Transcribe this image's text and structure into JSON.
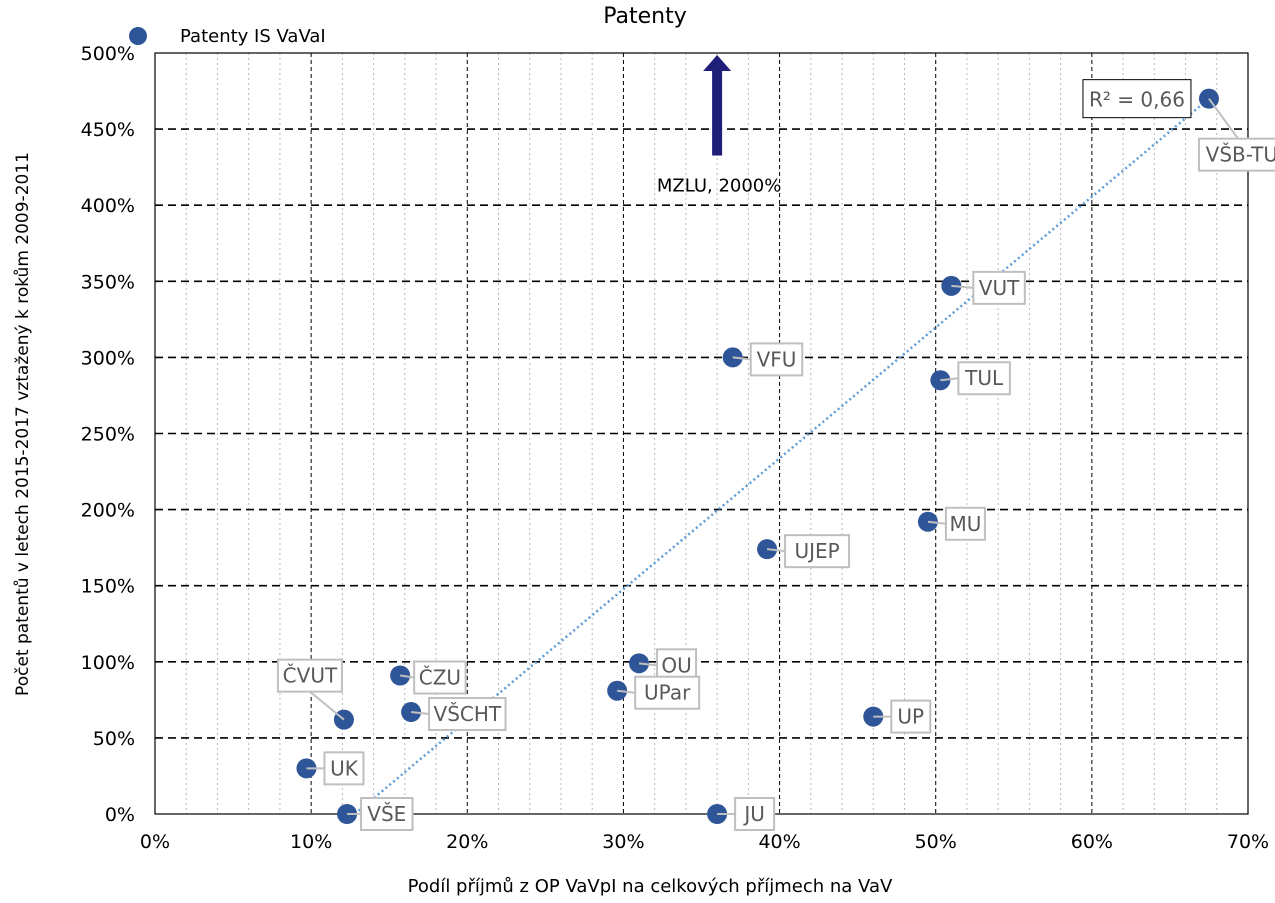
{
  "chart_data": {
    "type": "scatter",
    "title": "Patenty",
    "xlabel": "Podíl příjmů z OP VaVpI na celkových příjmech na VaV",
    "ylabel": "Počet patentů v letech 2015-2017 vztažený k rokům 2009-2011",
    "xlim": [
      0,
      70
    ],
    "ylim": [
      0,
      500
    ],
    "x_ticks": [
      "0%",
      "10%",
      "20%",
      "30%",
      "40%",
      "50%",
      "60%",
      "70%"
    ],
    "y_ticks": [
      "0%",
      "50%",
      "100%",
      "150%",
      "200%",
      "250%",
      "300%",
      "350%",
      "400%",
      "450%",
      "500%"
    ],
    "grid": true,
    "legend": {
      "position": "top-left",
      "entries": [
        "Patenty IS VaVaI"
      ]
    },
    "series": [
      {
        "name": "Patenty IS VaVaI",
        "color": "#2e5597",
        "points": [
          {
            "label": "VŠB-TUO",
            "x": 67.5,
            "y": 470
          },
          {
            "label": "VUT",
            "x": 51.0,
            "y": 347
          },
          {
            "label": "VFU",
            "x": 37.0,
            "y": 300
          },
          {
            "label": "TUL",
            "x": 50.3,
            "y": 285
          },
          {
            "label": "MU",
            "x": 49.5,
            "y": 192
          },
          {
            "label": "UJEP",
            "x": 39.2,
            "y": 174
          },
          {
            "label": "OU",
            "x": 31.0,
            "y": 99
          },
          {
            "label": "ČZU",
            "x": 15.7,
            "y": 91
          },
          {
            "label": "UPar",
            "x": 29.6,
            "y": 81
          },
          {
            "label": "VŠCHT",
            "x": 16.4,
            "y": 67
          },
          {
            "label": "UP",
            "x": 46.0,
            "y": 64
          },
          {
            "label": "ČVUT",
            "x": 12.1,
            "y": 62
          },
          {
            "label": "UK",
            "x": 9.7,
            "y": 30
          },
          {
            "label": "VŠE",
            "x": 12.3,
            "y": 0
          },
          {
            "label": "JU",
            "x": 36.0,
            "y": 0
          }
        ]
      }
    ],
    "trendline": {
      "type": "linear",
      "style": "dotted",
      "color": "#5b9bd5",
      "r2_label": "R² = 0,66",
      "from": [
        12.8,
        0
      ],
      "to": [
        67.5,
        470
      ]
    },
    "annotations": [
      {
        "text": "MZLU, 2000%",
        "arrow": "up",
        "x": 36.0,
        "y_from": 430,
        "y_to": 500,
        "color": "#1f1f7a"
      }
    ]
  }
}
